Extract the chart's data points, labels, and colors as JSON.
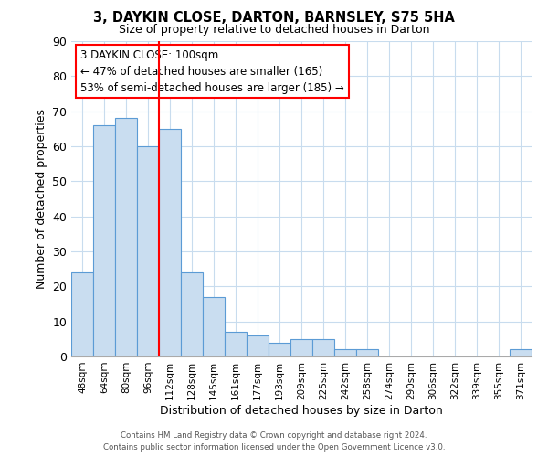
{
  "title": "3, DAYKIN CLOSE, DARTON, BARNSLEY, S75 5HA",
  "subtitle": "Size of property relative to detached houses in Darton",
  "xlabel": "Distribution of detached houses by size in Darton",
  "ylabel": "Number of detached properties",
  "bar_labels": [
    "48sqm",
    "64sqm",
    "80sqm",
    "96sqm",
    "112sqm",
    "128sqm",
    "145sqm",
    "161sqm",
    "177sqm",
    "193sqm",
    "209sqm",
    "225sqm",
    "242sqm",
    "258sqm",
    "274sqm",
    "290sqm",
    "306sqm",
    "322sqm",
    "339sqm",
    "355sqm",
    "371sqm"
  ],
  "bar_values": [
    24,
    66,
    68,
    60,
    65,
    24,
    17,
    7,
    6,
    4,
    5,
    5,
    2,
    2,
    0,
    0,
    0,
    0,
    0,
    0,
    2
  ],
  "bar_color": "#c9ddf0",
  "bar_edge_color": "#5b9bd5",
  "vline_x": 3.5,
  "ylim": [
    0,
    90
  ],
  "yticks": [
    0,
    10,
    20,
    30,
    40,
    50,
    60,
    70,
    80,
    90
  ],
  "annotation_title": "3 DAYKIN CLOSE: 100sqm",
  "annotation_line1": "← 47% of detached houses are smaller (165)",
  "annotation_line2": "53% of semi-detached houses are larger (185) →",
  "footer_line1": "Contains HM Land Registry data © Crown copyright and database right 2024.",
  "footer_line2": "Contains public sector information licensed under the Open Government Licence v3.0.",
  "background_color": "#ffffff",
  "grid_color": "#c8dcee"
}
